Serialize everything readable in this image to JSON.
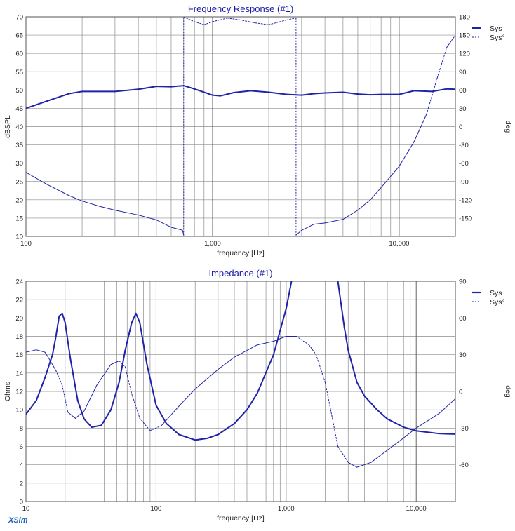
{
  "colors": {
    "series": "#1f23a8",
    "grid": "#8c8c8c",
    "brand": "#1a5fb4"
  },
  "brand_label": "XSim",
  "chart_data": [
    {
      "type": "line",
      "title": "Frequency Response (#1)",
      "xlabel": "frequency [Hz]",
      "ylabel": "dBSPL",
      "y2label": "deg",
      "xscale": "log",
      "xlim": [
        100,
        20000
      ],
      "ylim": [
        10,
        70
      ],
      "y2lim": [
        -180,
        180
      ],
      "xticks": [
        {
          "v": 100,
          "label": "100"
        },
        {
          "v": 1000,
          "label": "1,000"
        },
        {
          "v": 10000,
          "label": "10,000"
        }
      ],
      "yticks": [
        10,
        15,
        20,
        25,
        30,
        35,
        40,
        45,
        50,
        55,
        60,
        65,
        70
      ],
      "y2ticks": [
        -150,
        -120,
        -90,
        -60,
        -30,
        0,
        30,
        60,
        90,
        120,
        150,
        180
      ],
      "y2ticklabels": [
        "-150",
        "-120",
        "-90",
        "-60",
        "-30",
        "0",
        "30",
        "60",
        "90",
        "120",
        "150",
        "180"
      ],
      "legend": [
        "Sys",
        "Sys°"
      ],
      "legend_position": "top-right",
      "series": [
        {
          "name": "Sys",
          "axis": "left",
          "style": "solid",
          "points": [
            [
              100,
              45
            ],
            [
              130,
              47
            ],
            [
              170,
              49
            ],
            [
              200,
              49.6
            ],
            [
              250,
              49.6
            ],
            [
              300,
              49.6
            ],
            [
              400,
              50.2
            ],
            [
              500,
              51
            ],
            [
              600,
              50.9
            ],
            [
              700,
              51.2
            ],
            [
              800,
              50.3
            ],
            [
              1000,
              48.6
            ],
            [
              1100,
              48.4
            ],
            [
              1300,
              49.3
            ],
            [
              1600,
              49.8
            ],
            [
              2000,
              49.4
            ],
            [
              2500,
              48.8
            ],
            [
              3000,
              48.6
            ],
            [
              3500,
              49.0
            ],
            [
              4000,
              49.2
            ],
            [
              5000,
              49.4
            ],
            [
              6000,
              48.9
            ],
            [
              7000,
              48.7
            ],
            [
              8000,
              48.8
            ],
            [
              10000,
              48.8
            ],
            [
              12000,
              49.8
            ],
            [
              15000,
              49.6
            ],
            [
              18000,
              50.3
            ],
            [
              20000,
              50.2
            ]
          ]
        },
        {
          "name": "Sys°",
          "axis": "right",
          "style": "solid-dashed",
          "segments": [
            [
              [
                100,
                -75
              ],
              [
                130,
                -95
              ],
              [
                170,
                -113
              ],
              [
                200,
                -122
              ],
              [
                250,
                -131
              ],
              [
                300,
                -137
              ],
              [
                400,
                -145
              ],
              [
                500,
                -153
              ],
              [
                600,
                -165
              ],
              [
                690,
                -170
              ],
              [
                700,
                -178
              ]
            ],
            [
              [
                700,
                180
              ],
              [
                800,
                172
              ],
              [
                900,
                167
              ],
              [
                1000,
                172
              ],
              [
                1200,
                178
              ],
              [
                1400,
                175
              ],
              [
                1700,
                170
              ],
              [
                2000,
                167
              ],
              [
                2500,
                175
              ],
              [
                2800,
                178
              ]
            ],
            [
              [
                2800,
                -178
              ],
              [
                3000,
                -170
              ],
              [
                3500,
                -160
              ],
              [
                4000,
                -158
              ],
              [
                5000,
                -152
              ],
              [
                6000,
                -137
              ],
              [
                7000,
                -120
              ],
              [
                8000,
                -100
              ],
              [
                10000,
                -65
              ],
              [
                12000,
                -25
              ],
              [
                14000,
                20
              ],
              [
                16000,
                80
              ],
              [
                18000,
                130
              ],
              [
                20000,
                150
              ]
            ]
          ],
          "dashed_ranges": [
            [
              700,
              2800
            ],
            [
              14000,
              20000
            ]
          ],
          "connectors": [
            [
              700,
              -178,
              180
            ],
            [
              2800,
              178,
              -178
            ]
          ]
        }
      ]
    },
    {
      "type": "line",
      "title": "Impedance (#1)",
      "xlabel": "frequency [Hz]",
      "ylabel": "Ohms",
      "y2label": "deg",
      "xscale": "log",
      "xlim": [
        10,
        20000
      ],
      "ylim": [
        0,
        24
      ],
      "y2lim": [
        -90,
        90
      ],
      "xticks": [
        {
          "v": 10,
          "label": "10"
        },
        {
          "v": 100,
          "label": "100"
        },
        {
          "v": 1000,
          "label": "1,000"
        },
        {
          "v": 10000,
          "label": "10,000"
        }
      ],
      "yticks": [
        0,
        2,
        4,
        6,
        8,
        10,
        12,
        14,
        16,
        18,
        20,
        22,
        24
      ],
      "y2ticks": [
        -60,
        -30,
        0,
        30,
        60,
        90
      ],
      "y2ticklabels": [
        "-60",
        "-30",
        "0",
        "30",
        "60",
        "90"
      ],
      "legend": [
        "Sys",
        "Sys°"
      ],
      "legend_position": "top-right",
      "series": [
        {
          "name": "Sys",
          "axis": "left",
          "style": "solid",
          "points": [
            [
              10,
              9.5
            ],
            [
              12,
              11
            ],
            [
              14,
              13.5
            ],
            [
              16,
              16
            ],
            [
              17,
              18
            ],
            [
              18,
              20.2
            ],
            [
              19,
              20.5
            ],
            [
              20,
              19.5
            ],
            [
              22,
              15.5
            ],
            [
              25,
              11
            ],
            [
              28,
              9
            ],
            [
              32,
              8.1
            ],
            [
              38,
              8.3
            ],
            [
              45,
              10
            ],
            [
              52,
              13
            ],
            [
              58,
              16.5
            ],
            [
              65,
              19.5
            ],
            [
              70,
              20.5
            ],
            [
              75,
              19.5
            ],
            [
              85,
              15
            ],
            [
              100,
              10.5
            ],
            [
              120,
              8.5
            ],
            [
              150,
              7.3
            ],
            [
              200,
              6.7
            ],
            [
              250,
              6.9
            ],
            [
              300,
              7.3
            ],
            [
              400,
              8.5
            ],
            [
              500,
              10
            ],
            [
              600,
              11.8
            ],
            [
              800,
              16
            ],
            [
              1000,
              21
            ],
            [
              1100,
              24
            ],
            [
              1200,
              27
            ],
            [
              2300,
              27
            ],
            [
              2500,
              24
            ],
            [
              2800,
              19
            ],
            [
              3000,
              16.5
            ],
            [
              3500,
              13
            ],
            [
              4000,
              11.5
            ],
            [
              5000,
              10
            ],
            [
              6000,
              9
            ],
            [
              8000,
              8.1
            ],
            [
              10000,
              7.7
            ],
            [
              15000,
              7.4
            ],
            [
              20000,
              7.35
            ]
          ]
        },
        {
          "name": "Sys°",
          "axis": "right",
          "style": "solid-dashed",
          "points": [
            [
              10,
              32
            ],
            [
              12,
              34
            ],
            [
              14,
              32
            ],
            [
              15,
              27
            ],
            [
              17,
              17
            ],
            [
              19,
              5
            ],
            [
              21,
              -17
            ],
            [
              24,
              -22
            ],
            [
              28,
              -16
            ],
            [
              35,
              5
            ],
            [
              45,
              22
            ],
            [
              52,
              25
            ],
            [
              58,
              20
            ],
            [
              65,
              -2
            ],
            [
              75,
              -22
            ],
            [
              90,
              -32
            ],
            [
              110,
              -28
            ],
            [
              150,
              -12
            ],
            [
              200,
              2
            ],
            [
              300,
              18
            ],
            [
              400,
              28
            ],
            [
              600,
              38
            ],
            [
              800,
              41
            ],
            [
              1000,
              45
            ],
            [
              1200,
              45
            ],
            [
              1500,
              38
            ],
            [
              1700,
              30
            ],
            [
              2000,
              7
            ],
            [
              2200,
              -15
            ],
            [
              2500,
              -45
            ],
            [
              3000,
              -58
            ],
            [
              3500,
              -62
            ],
            [
              4500,
              -58
            ],
            [
              6000,
              -48
            ],
            [
              8000,
              -38
            ],
            [
              10000,
              -30
            ],
            [
              15000,
              -18
            ],
            [
              20000,
              -6
            ]
          ],
          "dashed_ranges": [
            [
              17,
              21
            ],
            [
              50,
              100
            ],
            [
              1300,
              3000
            ]
          ]
        }
      ]
    }
  ]
}
